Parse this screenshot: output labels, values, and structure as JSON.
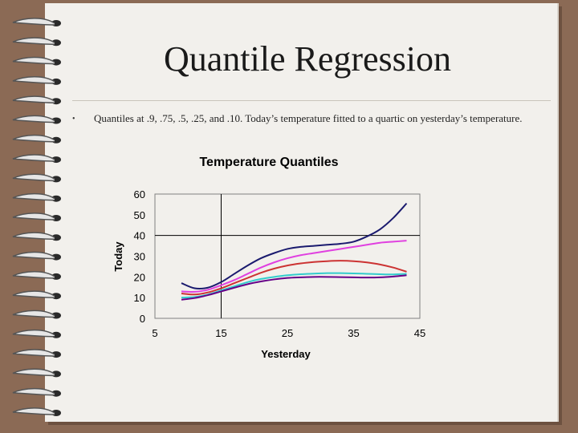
{
  "slide": {
    "title": "Quantile Regression",
    "bullet": "Quantiles at .9, .75, .5, .25, and .10. Today’s temperature fitted to a quartic on yesterday’s temperature."
  },
  "colors": {
    "background": "#8b6a55",
    "page": "#f2f0ec"
  },
  "chart_data": {
    "type": "line",
    "title": "Temperature Quantiles",
    "xlabel": "Yesterday",
    "ylabel": "Today",
    "xlim": [
      5,
      45
    ],
    "ylim": [
      0,
      60
    ],
    "xticks": [
      5,
      15,
      25,
      35,
      45
    ],
    "yticks": [
      0,
      10,
      20,
      30,
      40,
      50,
      60
    ],
    "xtick_labels": [
      "5",
      "15",
      "25",
      "35",
      "45"
    ],
    "ytick_labels": [
      "0",
      "10",
      "20",
      "30",
      "40",
      "50",
      "60"
    ],
    "grid": false,
    "reference_lines": {
      "x": 15,
      "y": 40
    },
    "legend": "none",
    "x": [
      9,
      11,
      13,
      15,
      17,
      19,
      21,
      23,
      25,
      27,
      29,
      31,
      33,
      35,
      37,
      39,
      41,
      43
    ],
    "series": [
      {
        "color": "#1a1a6e",
        "values": [
          17,
          14.5,
          14.8,
          17.5,
          21.5,
          25.5,
          29,
          31.5,
          33.5,
          34.5,
          35,
          35.5,
          36,
          37,
          39.5,
          43,
          48.5,
          55.5
        ]
      },
      {
        "color": "#e040e0",
        "values": [
          13,
          12.8,
          13.8,
          16,
          18.5,
          21.5,
          24.5,
          27,
          29,
          30.5,
          31.5,
          32.5,
          33.5,
          34.5,
          35.5,
          36.5,
          37,
          37.5
        ]
      },
      {
        "color": "#cc3333",
        "values": [
          12,
          11.5,
          12.5,
          14.5,
          17,
          19.5,
          22,
          24,
          25.5,
          26.5,
          27.2,
          27.6,
          27.8,
          27.6,
          27,
          26,
          24.5,
          22.5
        ]
      },
      {
        "color": "#33cccc",
        "values": [
          10,
          10.3,
          11.5,
          13.5,
          15.5,
          17.5,
          19,
          20,
          20.8,
          21.3,
          21.6,
          21.8,
          21.8,
          21.7,
          21.5,
          21.3,
          21.2,
          21.5
        ]
      },
      {
        "color": "#660088",
        "values": [
          9,
          9.8,
          11.2,
          13,
          14.8,
          16.5,
          17.8,
          18.8,
          19.5,
          19.8,
          20,
          20,
          19.9,
          19.8,
          19.7,
          19.8,
          20.2,
          20.8
        ]
      }
    ]
  }
}
